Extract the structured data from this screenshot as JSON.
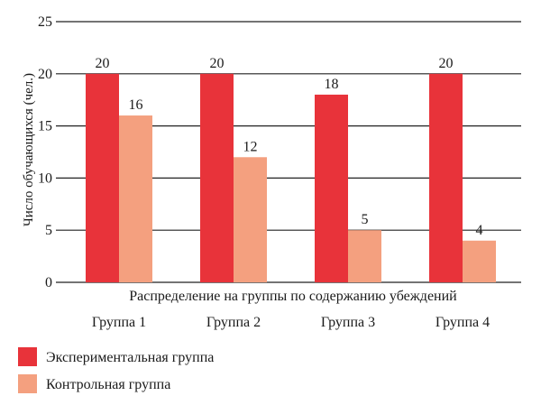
{
  "chart_data": {
    "type": "bar",
    "ylabel": "Число обучающихся (чел.)",
    "xlabel": "Распределение на группы по содержанию убеждений",
    "categories": [
      "Группа 1",
      "Группа 2",
      "Группа 3",
      "Группа 4"
    ],
    "series": [
      {
        "name": "Экспериментальная группа",
        "values": [
          20,
          20,
          18,
          20
        ],
        "color": "#e8333a"
      },
      {
        "name": "Контрольная группа",
        "values": [
          16,
          12,
          5,
          4
        ],
        "color": "#f4a07f"
      }
    ],
    "ylim": [
      0,
      25
    ],
    "yticks": [
      0,
      5,
      10,
      15,
      20,
      25
    ],
    "grid": true,
    "legend_position": "bottom-left"
  }
}
